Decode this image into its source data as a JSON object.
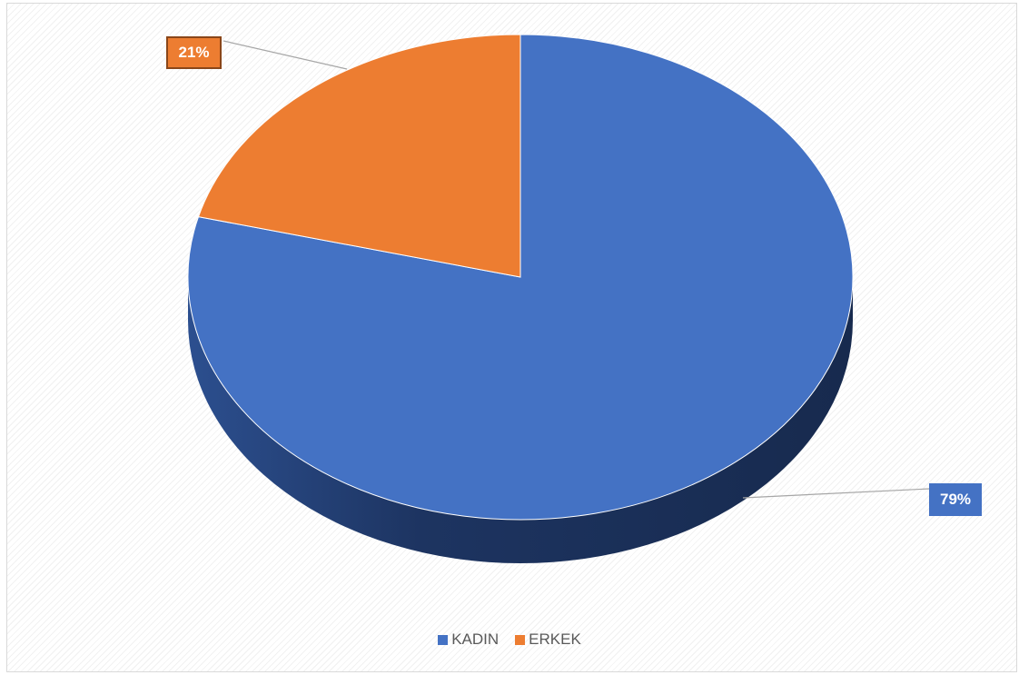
{
  "chart_data": {
    "type": "pie",
    "variant": "3d",
    "categories": [
      "KADIN",
      "ERKEK"
    ],
    "values": [
      79,
      21
    ],
    "data_labels": [
      "79%",
      "21%"
    ],
    "colors": [
      "#4472c4",
      "#ed7d31"
    ],
    "side_colors": [
      "#1f3764",
      "#8a4619"
    ],
    "legend_position": "bottom",
    "title": ""
  }
}
